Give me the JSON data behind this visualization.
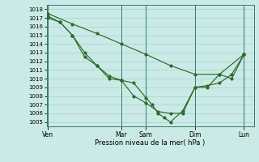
{
  "xlabel": "Pression niveau de la mer( hPa )",
  "bg_color": "#caeae5",
  "grid_color": "#9ecdc7",
  "line_color": "#2e6b2e",
  "ylim": [
    1004.5,
    1018.5
  ],
  "yticks": [
    1005,
    1006,
    1007,
    1008,
    1009,
    1010,
    1011,
    1012,
    1013,
    1014,
    1015,
    1016,
    1017,
    1018
  ],
  "xtick_labels": [
    "Ven",
    "Mar",
    "Sam",
    "Dim",
    "Lun"
  ],
  "xtick_positions": [
    0,
    3.0,
    4.0,
    6.0,
    8.0
  ],
  "xlim": [
    -0.05,
    8.4
  ],
  "line1_x": [
    0,
    0.5,
    1.0,
    1.5,
    2.0,
    2.5,
    3.0,
    3.5,
    4.0,
    4.5,
    5.0,
    5.5,
    6.0,
    6.5,
    7.0,
    7.5,
    8.0
  ],
  "line1_y": [
    1017.0,
    1016.5,
    1015.0,
    1012.5,
    1011.5,
    1010.3,
    1009.8,
    1008.0,
    1007.2,
    1006.2,
    1006.0,
    1006.0,
    1009.0,
    1009.0,
    1010.5,
    1010.0,
    1012.8
  ],
  "line2_x": [
    0,
    0.5,
    1.0,
    1.5,
    2.0,
    2.5,
    3.0,
    3.5,
    4.0,
    4.25,
    4.5,
    4.75,
    5.0,
    5.5,
    6.0,
    6.5,
    7.0,
    7.5,
    8.0
  ],
  "line2_y": [
    1017.2,
    1016.5,
    1015.0,
    1013.0,
    1011.5,
    1010.0,
    1009.8,
    1009.5,
    1007.8,
    1007.0,
    1006.0,
    1005.5,
    1005.0,
    1006.3,
    1009.0,
    1009.2,
    1009.5,
    1010.5,
    1012.8
  ],
  "line3_x": [
    0,
    1.0,
    2.0,
    3.0,
    4.0,
    5.0,
    6.0,
    7.0,
    8.0
  ],
  "line3_y": [
    1017.5,
    1016.3,
    1015.2,
    1014.0,
    1012.8,
    1011.5,
    1010.5,
    1010.5,
    1012.8
  ],
  "vline_color": "#3a7a6a",
  "spine_color": "#3a7a6a"
}
